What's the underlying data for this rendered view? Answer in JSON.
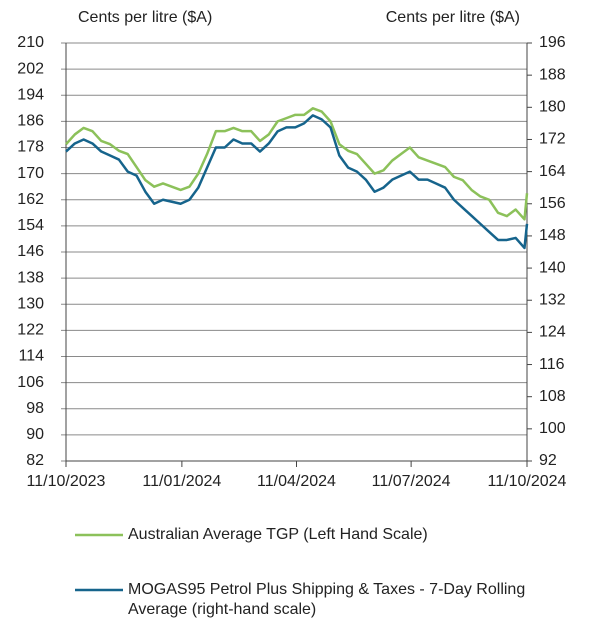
{
  "chart_data": {
    "type": "line",
    "y_label": "Cents per litre ($A)",
    "y2_label": "Cents per litre ($A)",
    "x": [
      "11/10/2023",
      "18/10/2023",
      "25/10/2023",
      "01/11/2023",
      "08/11/2023",
      "15/11/2023",
      "22/11/2023",
      "29/11/2023",
      "06/12/2023",
      "13/12/2023",
      "20/12/2023",
      "27/12/2023",
      "03/01/2024",
      "10/01/2024",
      "17/01/2024",
      "24/01/2024",
      "31/01/2024",
      "07/02/2024",
      "14/02/2024",
      "21/02/2024",
      "28/02/2024",
      "06/03/2024",
      "13/03/2024",
      "20/03/2024",
      "27/03/2024",
      "03/04/2024",
      "10/04/2024",
      "17/04/2024",
      "24/04/2024",
      "01/05/2024",
      "08/05/2024",
      "15/05/2024",
      "22/05/2024",
      "29/05/2024",
      "05/06/2024",
      "12/06/2024",
      "19/06/2024",
      "26/06/2024",
      "03/07/2024",
      "10/07/2024",
      "17/07/2024",
      "24/07/2024",
      "31/07/2024",
      "07/08/2024",
      "14/08/2024",
      "21/08/2024",
      "28/08/2024",
      "04/09/2024",
      "11/09/2024",
      "18/09/2024",
      "25/09/2024",
      "02/10/2024",
      "09/10/2024",
      "11/10/2024"
    ],
    "xlim": [
      "11/10/2023",
      "11/10/2024"
    ],
    "xticks": [
      "11/10/2023",
      "11/01/2024",
      "11/04/2024",
      "11/07/2024",
      "11/10/2024"
    ],
    "ylim": [
      82,
      210
    ],
    "yticks": [
      82,
      90,
      98,
      106,
      114,
      122,
      130,
      138,
      146,
      154,
      162,
      170,
      178,
      186,
      194,
      202,
      210
    ],
    "y2lim": [
      92,
      196
    ],
    "y2ticks": [
      92,
      100,
      108,
      116,
      124,
      132,
      140,
      148,
      156,
      164,
      172,
      180,
      188,
      196
    ],
    "grid": true,
    "series": [
      {
        "name": "Australian Average TGP (Left Hand Scale)",
        "color": "#8cc15a",
        "values": [
          179,
          182,
          184,
          183,
          180,
          179,
          177,
          176,
          172,
          168,
          166,
          167,
          166,
          165,
          166,
          170,
          176,
          183,
          183,
          184,
          183,
          183,
          180,
          182,
          186,
          187,
          188,
          188,
          190,
          189,
          186,
          179,
          177,
          176,
          173,
          170,
          171,
          174,
          176,
          178,
          175,
          174,
          173,
          172,
          169,
          168,
          165,
          163,
          162,
          158,
          157,
          159,
          156,
          164
        ]
      },
      {
        "name": "MOGAS95 Petrol Plus Shipping & Taxes - 7-Day Rolling Average (right-hand scale)",
        "color": "#16648c",
        "axis": "y2",
        "values": [
          169,
          171,
          172,
          171,
          169,
          168,
          167,
          164,
          163,
          159,
          156,
          157,
          156.5,
          156,
          157,
          160,
          165,
          170,
          170,
          172,
          171,
          171,
          169,
          171,
          174,
          175,
          175,
          176,
          178,
          177,
          175,
          168,
          165,
          164,
          162,
          159,
          160,
          162,
          163,
          164,
          162,
          162,
          161,
          160,
          157,
          155,
          153,
          151,
          149,
          147,
          147,
          147.5,
          145,
          151
        ]
      }
    ]
  }
}
